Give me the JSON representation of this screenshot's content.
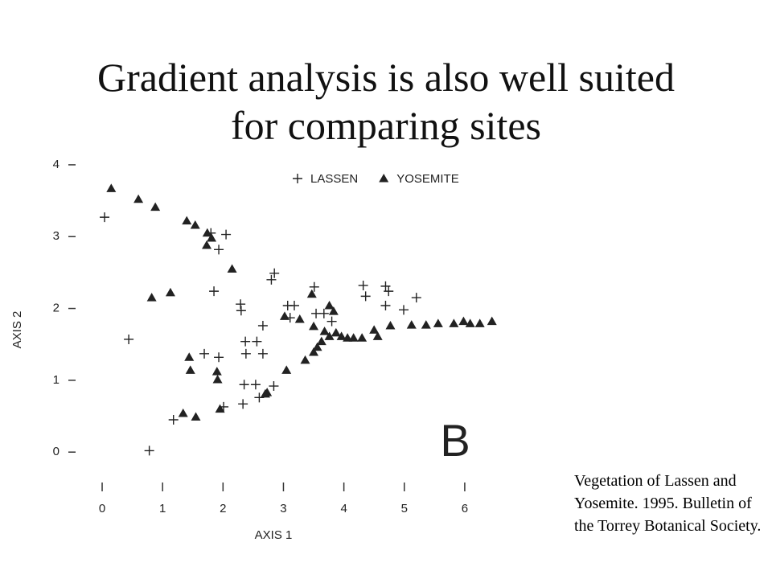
{
  "chart_data": {
    "type": "scatter",
    "title": "Gradient analysis is also well suited for comparing sites",
    "x_label": "AXIS 1",
    "y_label": "AXIS 2",
    "xlim": [
      -0.2,
      6.6
    ],
    "ylim": [
      -0.3,
      4.1
    ],
    "xticks": [
      0,
      1,
      2,
      3,
      4,
      5,
      6
    ],
    "yticks": [
      0,
      1,
      2,
      3,
      4
    ],
    "grid": false,
    "legend": "top",
    "annotations": [
      "B",
      "Vegetation of Lassen and Yosemite. 1995. Bulletin of the Torrey Botanical Society."
    ],
    "series": [
      {
        "name": "LASSEN",
        "color": "#222222",
        "marker": "plus",
        "x": [
          0.04,
          1.8,
          2.05,
          1.93,
          2.85,
          2.8,
          1.85,
          2.29,
          2.3,
          3.07,
          3.18,
          3.51,
          3.54,
          3.11,
          2.66,
          2.37,
          2.56,
          2.38,
          2.66,
          3.67,
          4.32,
          4.36,
          4.69,
          4.74,
          5.2,
          4.69,
          4.99,
          3.8,
          0.44,
          1.69,
          1.93,
          2.35,
          2.54,
          2.84,
          2.6,
          2.33,
          2.01,
          1.18,
          0.78
        ],
        "y": [
          3.27,
          3.05,
          3.03,
          2.82,
          2.49,
          2.4,
          2.24,
          2.06,
          1.97,
          2.04,
          2.04,
          2.3,
          1.93,
          1.87,
          1.76,
          1.54,
          1.54,
          1.37,
          1.37,
          1.93,
          2.32,
          2.17,
          2.31,
          2.24,
          2.15,
          2.04,
          1.98,
          1.82,
          1.57,
          1.37,
          1.32,
          0.94,
          0.94,
          0.92,
          0.76,
          0.67,
          0.63,
          0.45,
          0.02
        ]
      },
      {
        "name": "YOSEMITE",
        "color": "#222222",
        "marker": "triangle",
        "x": [
          0.15,
          0.6,
          0.88,
          1.4,
          1.54,
          1.74,
          1.81,
          1.73,
          2.15,
          0.82,
          1.13,
          3.47,
          3.76,
          3.83,
          3.02,
          3.27,
          3.5,
          3.68,
          3.76,
          3.87,
          3.96,
          3.63,
          3.56,
          3.5,
          3.36,
          4.16,
          4.3,
          4.56,
          4.77,
          4.5,
          5.12,
          5.36,
          5.56,
          5.82,
          6.09,
          6.45,
          1.44,
          1.46,
          1.9,
          1.91,
          2.73,
          1.34,
          1.55,
          1.95,
          3.05,
          2.7,
          4.06,
          6.25,
          5.98
        ],
        "y": [
          3.67,
          3.52,
          3.41,
          3.22,
          3.16,
          3.05,
          2.98,
          2.88,
          2.55,
          2.15,
          2.22,
          2.2,
          2.04,
          1.96,
          1.89,
          1.85,
          1.75,
          1.68,
          1.61,
          1.66,
          1.61,
          1.54,
          1.46,
          1.39,
          1.28,
          1.59,
          1.59,
          1.61,
          1.76,
          1.7,
          1.77,
          1.77,
          1.79,
          1.79,
          1.79,
          1.82,
          1.32,
          1.14,
          1.12,
          1.01,
          0.83,
          0.54,
          0.49,
          0.6,
          1.14,
          0.81,
          1.59,
          1.79,
          1.82
        ]
      }
    ]
  }
}
